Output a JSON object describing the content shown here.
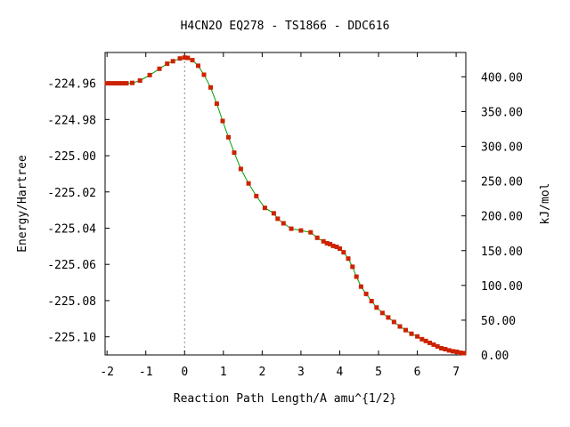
{
  "chart_data": {
    "type": "line",
    "title": "H4CN2O   EQ278 - TS1866 - DDC616",
    "xlabel": "Reaction Path Length/A amu^{1/2}",
    "ylabel": "Energy/Hartree",
    "y2label": "kJ/mol",
    "xlim": [
      -2.05,
      7.25
    ],
    "ylim": [
      -225.11,
      -224.943
    ],
    "y2lim": [
      0,
      435
    ],
    "xticks": [
      -2,
      -1,
      0,
      1,
      2,
      3,
      4,
      5,
      6,
      7
    ],
    "xtick_labels": [
      "-2",
      "-1",
      "0",
      "1",
      "2",
      "3",
      "4",
      "5",
      "6",
      "7"
    ],
    "yticks": [
      -224.96,
      -224.98,
      -225.0,
      -225.02,
      -225.04,
      -225.06,
      -225.08,
      -225.1
    ],
    "ytick_labels": [
      "-224.96",
      "-224.98",
      "-225.00",
      "-225.02",
      "-225.04",
      "-225.06",
      "-225.08",
      "-225.10"
    ],
    "y2ticks": [
      400,
      350,
      300,
      250,
      200,
      150,
      100,
      50,
      0
    ],
    "y2tick_labels": [
      "400.00",
      "350.00",
      "300.00",
      "250.00",
      "200.00",
      "150.00",
      "100.00",
      "50.00",
      "0.00"
    ],
    "ts_marker_x": 0,
    "grid": false,
    "legend": "none",
    "colors": {
      "line": "#00a000",
      "marker": "#cc2200",
      "ts_line": "#888888",
      "axis": "#000000"
    },
    "series": [
      {
        "x": [
          -2.0,
          -1.9,
          -1.8,
          -1.7,
          -1.6,
          -1.5,
          -1.35,
          -1.15,
          -0.9,
          -0.65,
          -0.45,
          -0.3,
          -0.12,
          0.0,
          0.08,
          0.2,
          0.35,
          0.5,
          0.67,
          0.83,
          0.98,
          1.13,
          1.28,
          1.45,
          1.65,
          1.85,
          2.07,
          2.3,
          2.4,
          2.55,
          2.75,
          3.0,
          3.25,
          3.42,
          3.58,
          3.67,
          3.75,
          3.83,
          3.92,
          4.0,
          4.1,
          4.22,
          4.33,
          4.43,
          4.55,
          4.68,
          4.82,
          4.95,
          5.1,
          5.25,
          5.4,
          5.55,
          5.7,
          5.85,
          6.0,
          6.12,
          6.22,
          6.32,
          6.42,
          6.52,
          6.62,
          6.72,
          6.82,
          6.92,
          7.02,
          7.12,
          7.2
        ],
        "y": [
          -224.96,
          -224.96,
          -224.96,
          -224.96,
          -224.96,
          -224.96,
          -224.9598,
          -224.9585,
          -224.9555,
          -224.952,
          -224.9492,
          -224.9478,
          -224.9463,
          -224.9458,
          -224.946,
          -224.9472,
          -224.9503,
          -224.9553,
          -224.9623,
          -224.9713,
          -224.9808,
          -224.9898,
          -224.9983,
          -225.0073,
          -225.0153,
          -225.0223,
          -225.0288,
          -225.0318,
          -225.0348,
          -225.0373,
          -225.0403,
          -225.0413,
          -225.0423,
          -225.0453,
          -225.0473,
          -225.0483,
          -225.0488,
          -225.0498,
          -225.0503,
          -225.0513,
          -225.0533,
          -225.0568,
          -225.0613,
          -225.0668,
          -225.0723,
          -225.0763,
          -225.0803,
          -225.0838,
          -225.0868,
          -225.0893,
          -225.0918,
          -225.0943,
          -225.0963,
          -225.0983,
          -225.0998,
          -225.1013,
          -225.1023,
          -225.1033,
          -225.1043,
          -225.1053,
          -225.1063,
          -225.1068,
          -225.1075,
          -225.108,
          -225.1083,
          -225.1088,
          -225.109
        ]
      }
    ]
  }
}
